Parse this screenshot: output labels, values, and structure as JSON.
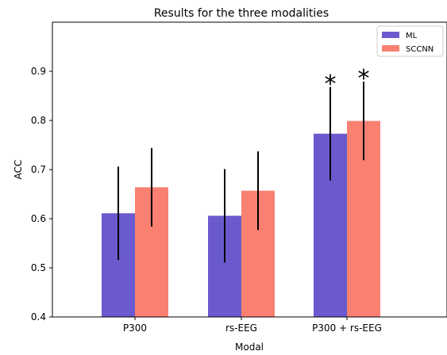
{
  "chart_data": {
    "type": "bar",
    "title": "Results for the three modalities",
    "xlabel": "Modal",
    "ylabel": "ACC",
    "categories": [
      "P300",
      "rs-EEG",
      "P300 + rs-EEG"
    ],
    "series": [
      {
        "name": "ML",
        "color": "#6a5acd",
        "values": [
          0.611,
          0.606,
          0.773
        ],
        "errors": [
          0.095,
          0.095,
          0.095
        ]
      },
      {
        "name": "SCCNN",
        "color": "#fa8072",
        "values": [
          0.664,
          0.657,
          0.799
        ],
        "errors": [
          0.08,
          0.08,
          0.08
        ]
      }
    ],
    "ylim": [
      0.4,
      1.0
    ],
    "yticks": [
      "0.4",
      "0.5",
      "0.6",
      "0.7",
      "0.8",
      "0.9"
    ],
    "grid": false,
    "legend_position": "top-right",
    "annotations": [
      {
        "text": "*",
        "category_index": 2,
        "series_index": 0
      },
      {
        "text": "*",
        "category_index": 2,
        "series_index": 1
      }
    ]
  }
}
